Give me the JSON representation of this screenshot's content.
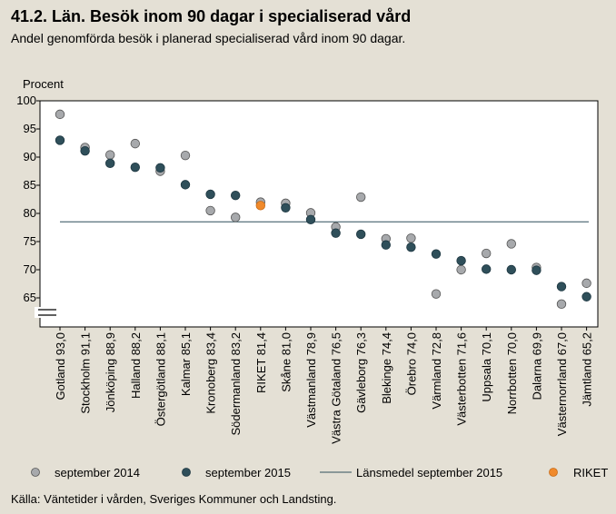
{
  "header": {
    "title": "41.2. Län. Besök inom 90 dagar i specialiserad vård",
    "subtitle": "Andel genomförda besök i planerad specialiserad vård inom 90 dagar."
  },
  "footer": {
    "source": "Källa: Väntetider i vården, Sveriges Kommuner och Landsting."
  },
  "colors": {
    "background": "#e4e0d5",
    "plot_background": "#ffffff",
    "series_2014": "#a7a9ac",
    "series_2015": "#2f4f5a",
    "riket": "#f08a2c",
    "mean_line": "#2f4f5a"
  },
  "chart_data": {
    "type": "scatter",
    "title": "41.2. Län. Besök inom 90 dagar i specialiserad vård",
    "subtitle": "Andel genomförda besök i planerad specialiserad vård inom 90 dagar.",
    "ylabel": "Procent",
    "ylim": [
      61,
      100
    ],
    "yticks": [
      65,
      70,
      75,
      80,
      85,
      90,
      95,
      100
    ],
    "axis_break": true,
    "grid": false,
    "legend_position": "bottom",
    "categories": [
      "Gotland 93,0",
      "Stockholm 91,1",
      "Jönköping 88,9",
      "Halland 88,2",
      "Östergötland 88,1",
      "Kalmar 85,1",
      "Kronoberg 83,4",
      "Södermanland 83,2",
      "RIKET 81,4",
      "Skåne 81,0",
      "Västmanland 78,9",
      "Västra Götaland 76,5",
      "Gävleborg 76,3",
      "Blekinge 74,4",
      "Örebro 74,0",
      "Värmland 72,8",
      "Västerbotten 71,6",
      "Uppsala 70,1",
      "Norrbotten 70,0",
      "Dalarna 69,9",
      "Västernorrland 67,0",
      "Jämtland 65,2"
    ],
    "riket_index": 8,
    "series": [
      {
        "name": "september 2014",
        "values": [
          97.6,
          91.7,
          90.4,
          92.4,
          87.5,
          90.3,
          80.5,
          79.3,
          82.0,
          81.8,
          80.1,
          77.6,
          82.9,
          75.5,
          75.6,
          65.7,
          70.0,
          72.9,
          74.6,
          70.4,
          63.9,
          67.6
        ]
      },
      {
        "name": "september 2015",
        "values": [
          93.0,
          91.1,
          88.9,
          88.2,
          88.1,
          85.1,
          83.4,
          83.2,
          81.4,
          81.0,
          78.9,
          76.5,
          76.3,
          74.4,
          74.0,
          72.8,
          71.6,
          70.1,
          70.0,
          69.9,
          67.0,
          65.2
        ]
      }
    ],
    "mean_line": {
      "name": "Länsmedel september 2015",
      "value": 78.5
    },
    "legend": [
      "september 2014",
      "september 2015",
      "Länsmedel september 2015",
      "RIKET"
    ]
  }
}
